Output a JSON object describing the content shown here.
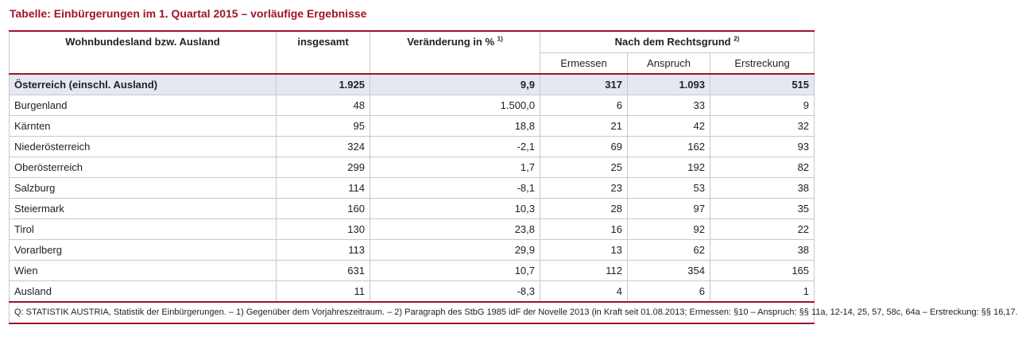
{
  "title": "Tabelle: Einbürgerungen im 1. Quartal 2015 – vorläufige Ergebnisse",
  "headers": {
    "region": "Wohnbundesland bzw. Ausland",
    "total": "insgesamt",
    "change": "Veränderung in %",
    "change_note": "1)",
    "legal": "Nach dem Rechtsgrund",
    "legal_note": "2)",
    "discretion": "Ermessen",
    "entitlement": "Anspruch",
    "extension": "Erstreckung"
  },
  "total_row": {
    "region": "Österreich (einschl. Ausland)",
    "total": "1.925",
    "change": "9,9",
    "discretion": "317",
    "entitlement": "1.093",
    "extension": "515"
  },
  "rows": [
    {
      "region": "Burgenland",
      "total": "48",
      "change": "1.500,0",
      "discretion": "6",
      "entitlement": "33",
      "extension": "9"
    },
    {
      "region": "Kärnten",
      "total": "95",
      "change": "18,8",
      "discretion": "21",
      "entitlement": "42",
      "extension": "32"
    },
    {
      "region": "Niederösterreich",
      "total": "324",
      "change": "-2,1",
      "discretion": "69",
      "entitlement": "162",
      "extension": "93"
    },
    {
      "region": "Oberösterreich",
      "total": "299",
      "change": "1,7",
      "discretion": "25",
      "entitlement": "192",
      "extension": "82"
    },
    {
      "region": "Salzburg",
      "total": "114",
      "change": "-8,1",
      "discretion": "23",
      "entitlement": "53",
      "extension": "38"
    },
    {
      "region": "Steiermark",
      "total": "160",
      "change": "10,3",
      "discretion": "28",
      "entitlement": "97",
      "extension": "35"
    },
    {
      "region": "Tirol",
      "total": "130",
      "change": "23,8",
      "discretion": "16",
      "entitlement": "92",
      "extension": "22"
    },
    {
      "region": "Vorarlberg",
      "total": "113",
      "change": "29,9",
      "discretion": "13",
      "entitlement": "62",
      "extension": "38"
    },
    {
      "region": "Wien",
      "total": "631",
      "change": "10,7",
      "discretion": "112",
      "entitlement": "354",
      "extension": "165"
    },
    {
      "region": "Ausland",
      "total": "11",
      "change": "-8,3",
      "discretion": "4",
      "entitlement": "6",
      "extension": "1"
    }
  ],
  "footnote": "Q: STATISTIK AUSTRIA, Statistik der Einbürgerungen. – 1) Gegenüber dem Vorjahreszeitraum. – 2) Paragraph des StbG 1985 idF der Novelle 2013 (in Kraft seit 01.08.2013; Ermessen: §10 – Anspruch:  §§ 11a, 12-14, 25, 57, 58c, 64a – Erstreckung: §§ 16,17."
}
